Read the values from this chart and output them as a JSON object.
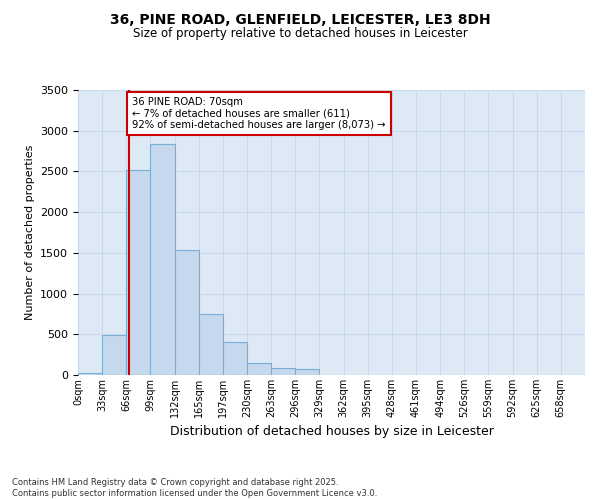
{
  "title_line1": "36, PINE ROAD, GLENFIELD, LEICESTER, LE3 8DH",
  "title_line2": "Size of property relative to detached houses in Leicester",
  "xlabel": "Distribution of detached houses by size in Leicester",
  "ylabel": "Number of detached properties",
  "footnote": "Contains HM Land Registry data © Crown copyright and database right 2025.\nContains public sector information licensed under the Open Government Licence v3.0.",
  "bar_labels": [
    "0sqm",
    "33sqm",
    "66sqm",
    "99sqm",
    "132sqm",
    "165sqm",
    "197sqm",
    "230sqm",
    "263sqm",
    "296sqm",
    "329sqm",
    "362sqm",
    "395sqm",
    "428sqm",
    "461sqm",
    "494sqm",
    "526sqm",
    "559sqm",
    "592sqm",
    "625sqm",
    "658sqm"
  ],
  "bar_values": [
    20,
    490,
    2520,
    2840,
    1530,
    750,
    400,
    150,
    80,
    70,
    0,
    0,
    0,
    0,
    0,
    0,
    0,
    0,
    0,
    0,
    0
  ],
  "bar_color": "#c5d8ee",
  "bar_edge_color": "#7aafd4",
  "grid_color": "#c8d8ea",
  "bg_color": "#ddeaf6",
  "fig_color": "#ffffff",
  "property_sqm": 70,
  "property_label": "36 PINE ROAD: 70sqm",
  "annotation_line1": "← 7% of detached houses are smaller (611)",
  "annotation_line2": "92% of semi-detached houses are larger (8,073) →",
  "vline_color": "#cc0000",
  "annotation_box_color": "#ffffff",
  "annotation_box_edge": "#cc0000",
  "ylim": [
    0,
    3500
  ],
  "yticks": [
    0,
    500,
    1000,
    1500,
    2000,
    2500,
    3000,
    3500
  ],
  "bin_width": 33,
  "figsize": [
    6.0,
    5.0
  ],
  "dpi": 100
}
